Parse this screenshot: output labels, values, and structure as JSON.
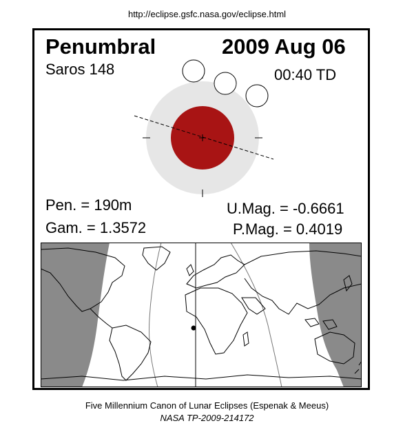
{
  "header": {
    "url": "http://eclipse.gsfc.nasa.gov/eclipse.html"
  },
  "eclipse": {
    "type": "Penumbral",
    "date": "2009 Aug 06",
    "saros": "Saros 148",
    "time": "00:40 TD",
    "pen_duration": "Pen. = 190m",
    "gamma": "Gam. = 1.3572",
    "umag": "U.Mag. = -0.6661",
    "pmag": "P.Mag. = 0.4019"
  },
  "colors": {
    "umbra": "#a81414",
    "penumbra": "#e6e6e6",
    "night": "#8a8a8a",
    "visible": "#ffffff",
    "partial": "#f2f2f2"
  },
  "footer": {
    "caption": "Five Millennium Canon of Lunar Eclipses (Espenak & Meeus)",
    "publication": "NASA TP-2009-214172"
  }
}
